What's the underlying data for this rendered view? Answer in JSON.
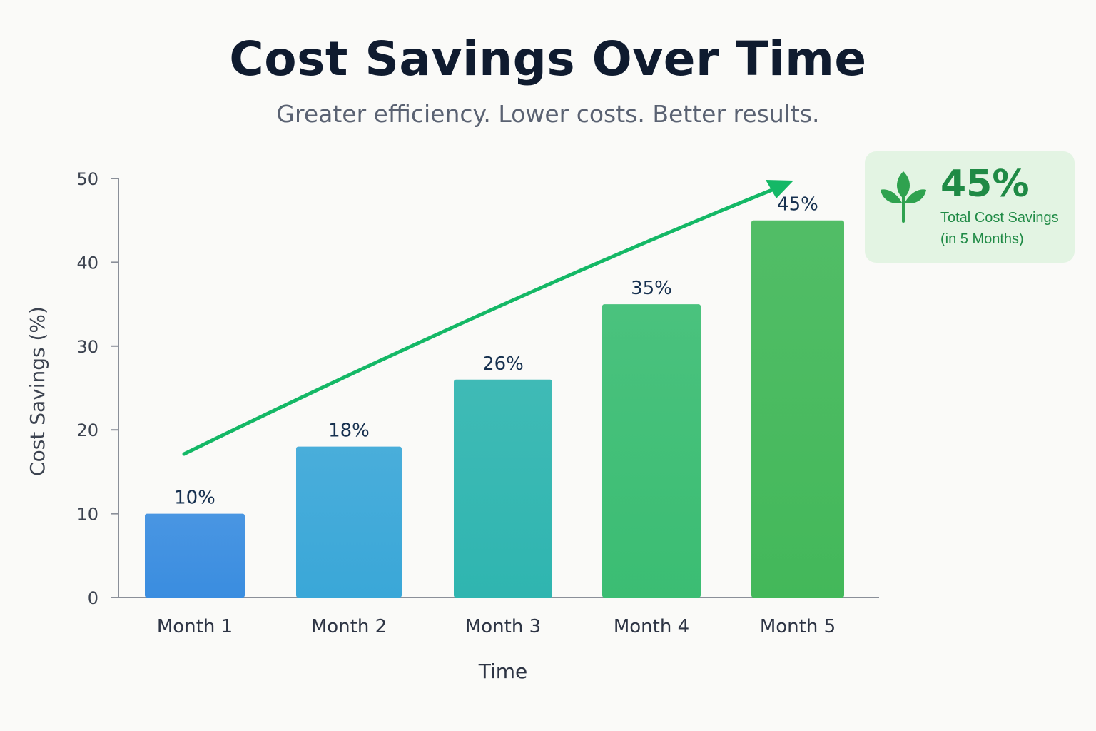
{
  "header": {
    "title": "Cost Savings Over Time",
    "subtitle": "Greater efficiency. Lower costs. Better results."
  },
  "callout": {
    "value": "45%",
    "line1": "Total Cost Savings",
    "line2": "(in 5 Months)",
    "icon": "leaf-icon"
  },
  "chart_data": {
    "type": "bar",
    "categories": [
      "Month 1",
      "Month 2",
      "Month 3",
      "Month 4",
      "Month 5"
    ],
    "values": [
      10,
      18,
      26,
      35,
      45
    ],
    "data_labels": [
      "10%",
      "18%",
      "26%",
      "35%",
      "45%"
    ],
    "xlabel": "Time",
    "ylabel": "Cost Savings (%)",
    "ylim": [
      0,
      50
    ],
    "yticks": [
      0,
      10,
      20,
      30,
      40,
      50
    ],
    "grid": false,
    "legend": "none",
    "trend_arrow": true,
    "bar_colors": [
      "#3a8de0",
      "#3aa7d8",
      "#2fb5b0",
      "#3bbd73",
      "#43b85a"
    ],
    "arrow_color": "#14b866"
  }
}
